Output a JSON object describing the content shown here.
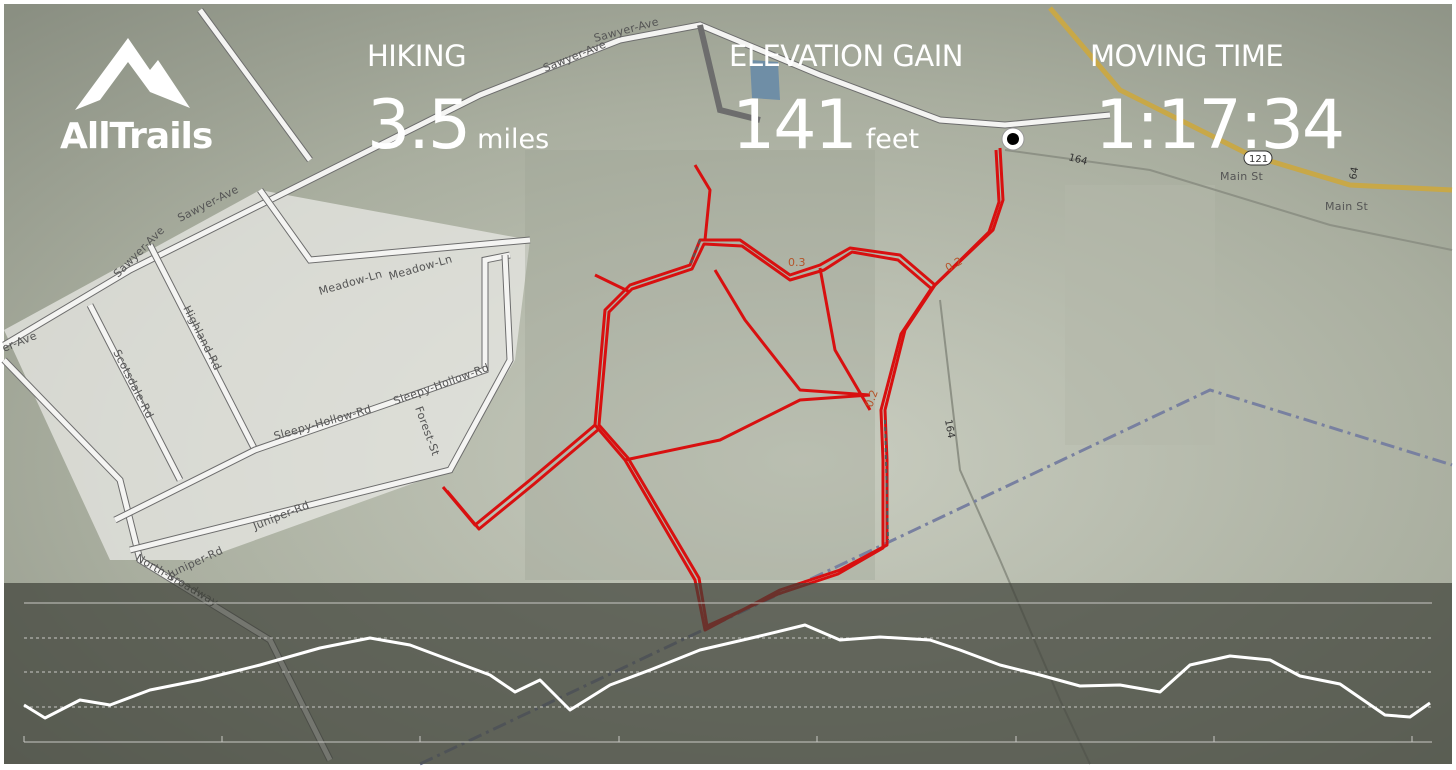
{
  "header": {
    "logo": "AllTrails",
    "stats": [
      {
        "label": "HIKING",
        "value": "3.5",
        "unit": "miles"
      },
      {
        "label": "ELEVATION GAIN",
        "value": "141",
        "unit": "feet"
      },
      {
        "label": "MOVING TIME",
        "value": "1:17:34"
      }
    ]
  },
  "map": {
    "streets": [
      "Sawyer-Ave",
      "Sawyer-Ave",
      "Sawyer-Ave",
      "Sawyer-Ave",
      "er-Ave",
      "Meadow-Ln",
      "Meadow-Ln",
      "Highland-Rd",
      "Scotsdale-Rd",
      "Sleepy-Hollow-Rd",
      "Sleepy-Hollow-Rd",
      "Forest-St",
      "Juniper-Rd",
      "Juniper-Rd",
      "North-Broadway",
      "Main St",
      "Main St"
    ],
    "route_shields": [
      "121",
      "164",
      "164",
      "64"
    ],
    "distance_markers": [
      "0.3",
      "0.2",
      "0.2"
    ]
  }
}
